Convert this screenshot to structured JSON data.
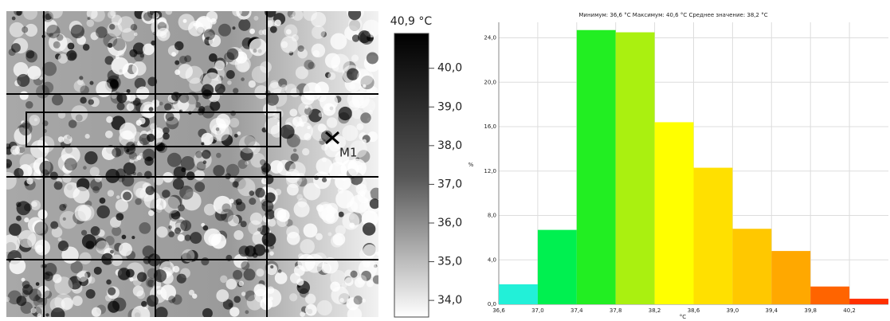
{
  "chart_data": [
    {
      "type": "histogram",
      "title": "Минимум: 36,6 °C Максимум: 40,6 °C Среднее значение: 38,2 °C",
      "xlabel": "°C",
      "ylabel": "%",
      "bins": [
        36.6,
        37.0,
        37.4,
        37.8,
        38.2,
        38.6,
        39.0,
        39.4,
        39.8,
        40.2,
        40.6
      ],
      "counts": [
        1.8,
        6.7,
        24.7,
        24.5,
        16.4,
        12.3,
        6.8,
        4.8,
        1.6,
        0.5
      ],
      "colors": [
        "#22f0d8",
        "#00f050",
        "#22ee22",
        "#aaf010",
        "#ffff00",
        "#ffe000",
        "#ffc800",
        "#ffa800",
        "#ff6400",
        "#ff3000"
      ],
      "xlim": [
        36.6,
        40.6
      ],
      "ylim": [
        0,
        25.4
      ],
      "xticks": [
        {
          "value": 36.6,
          "label": "36,6"
        },
        {
          "value": 37.0,
          "label": "37,0"
        },
        {
          "value": 37.4,
          "label": "37,4"
        },
        {
          "value": 37.8,
          "label": "37,8"
        },
        {
          "value": 38.2,
          "label": "38,2"
        },
        {
          "value": 38.6,
          "label": "38,6"
        },
        {
          "value": 39.0,
          "label": "39,0"
        },
        {
          "value": 39.4,
          "label": "39,4"
        },
        {
          "value": 39.8,
          "label": "39,8"
        },
        {
          "value": 40.2,
          "label": "40,2"
        }
      ],
      "yticks": [
        {
          "value": 0,
          "label": "0,0"
        },
        {
          "value": 4,
          "label": "4,0"
        },
        {
          "value": 8,
          "label": "8,0"
        },
        {
          "value": 12,
          "label": "12,0"
        },
        {
          "value": 16,
          "label": "16,0"
        },
        {
          "value": 20,
          "label": "20,0"
        },
        {
          "value": 24,
          "label": "24,0"
        }
      ],
      "grid": true
    },
    {
      "type": "colorbar",
      "title": "40,9 °C",
      "ylim": [
        33.57,
        40.9
      ],
      "yticks": [
        {
          "value": 34,
          "label": "34,0"
        },
        {
          "value": 35,
          "label": "35,0"
        },
        {
          "value": 36,
          "label": "36,0"
        },
        {
          "value": 37,
          "label": "37,0"
        },
        {
          "value": 38,
          "label": "38,0"
        },
        {
          "value": 39,
          "label": "39,0"
        },
        {
          "value": 40,
          "label": "40,0"
        }
      ]
    }
  ],
  "image": {
    "marker": "M1"
  }
}
